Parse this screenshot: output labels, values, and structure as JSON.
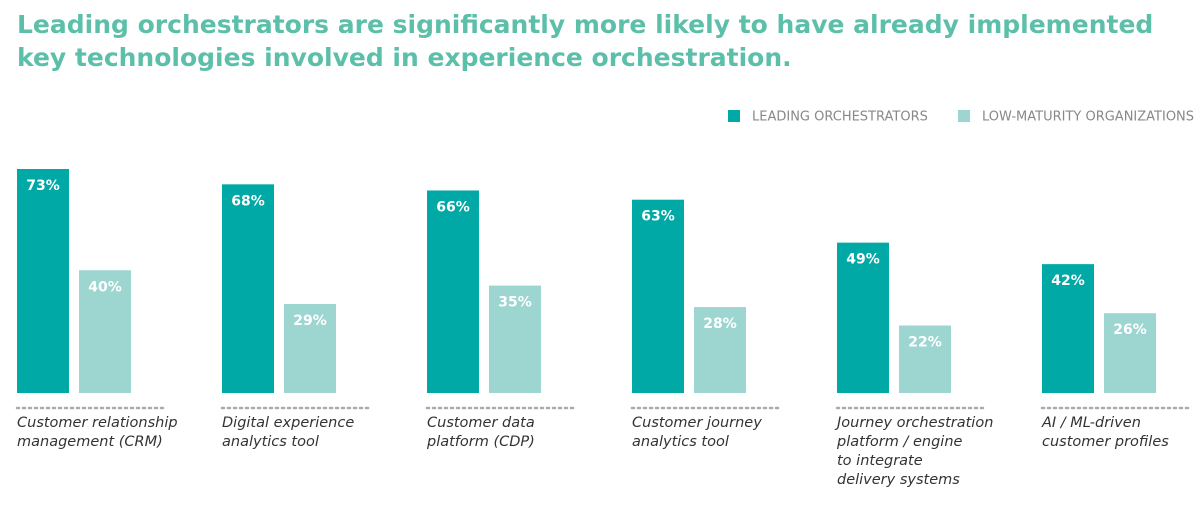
{
  "chart_data": {
    "type": "bar",
    "title": "Leading orchestrators are significantly more likely to have already implemented\nkey technologies involved in experience orchestration.",
    "categories": [
      "Customer relationship\nmanagement (CRM)",
      "Digital experience\nanalytics tool",
      "Customer data\nplatform (CDP)",
      "Customer journey\nanalytics tool",
      "Journey orchestration\nplatform / engine\nto integrate\ndelivery systems",
      "AI / ML-driven\ncustomer profiles"
    ],
    "series": [
      {
        "name": "LEADING ORCHESTRATORS",
        "color": "#00a9a5",
        "values": [
          73,
          68,
          66,
          63,
          49,
          42
        ],
        "value_labels": [
          "73%",
          "68%",
          "66%",
          "63%",
          "49%",
          "42%"
        ]
      },
      {
        "name": "LOW-MATURITY ORGANIZATIONS",
        "color": "#9dd5d0",
        "values": [
          40,
          29,
          35,
          28,
          22,
          26
        ],
        "value_labels": [
          "40%",
          "29%",
          "35%",
          "28%",
          "22%",
          "26%"
        ]
      }
    ],
    "legend": "top-right"
  }
}
